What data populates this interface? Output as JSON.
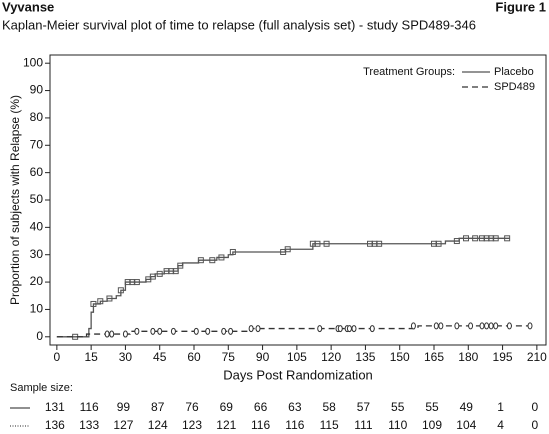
{
  "header": {
    "left": "Vyvanse",
    "right": "Figure 1"
  },
  "chart_data": {
    "type": "step",
    "title": "Kaplan-Meier survival plot of time to relapse (full analysis set) - study SPD489-346",
    "x_label": "Days Post Randomization",
    "y_label": "Proportion of subjects with Relapse (%)",
    "legend_title": "Treatment Groups:",
    "legend_position": "top-right",
    "sample_size_label": "Sample size:",
    "xlim": [
      -3,
      214
    ],
    "ylim": [
      -3,
      103
    ],
    "xticks": [
      0,
      15,
      30,
      45,
      60,
      75,
      90,
      105,
      120,
      135,
      150,
      165,
      180,
      195,
      210
    ],
    "yticks": [
      0,
      10,
      20,
      30,
      40,
      50,
      60,
      70,
      80,
      90,
      100
    ],
    "series": [
      {
        "name": "Placebo",
        "color": "#555555",
        "dash": "solid",
        "x": [
          0,
          14,
          15,
          16,
          19,
          22,
          26,
          28,
          30,
          39,
          41,
          43,
          47,
          53,
          55,
          62,
          70,
          75,
          77,
          100,
          112,
          170,
          176,
          198
        ],
        "values": [
          0,
          3,
          9,
          12,
          13,
          14,
          15,
          17,
          20,
          21,
          22,
          23,
          24,
          26,
          27,
          28,
          29,
          30,
          31,
          32,
          34,
          35,
          36,
          36
        ],
        "censored": {
          "x": [
            8,
            16,
            19,
            23,
            28,
            31,
            33,
            35,
            40,
            42,
            45,
            48,
            50,
            52,
            54,
            63,
            68,
            72,
            77,
            99,
            101,
            112,
            114,
            118,
            137,
            139,
            141,
            165,
            167,
            175,
            179,
            183,
            186,
            188,
            190,
            192,
            197
          ],
          "y": [
            0,
            12,
            13,
            14,
            17,
            20,
            20,
            20,
            21,
            22,
            23,
            24,
            24,
            24,
            26,
            28,
            28,
            29,
            31,
            31,
            32,
            34,
            34,
            34,
            34,
            34,
            34,
            34,
            34,
            35,
            36,
            36,
            36,
            36,
            36,
            36,
            36
          ]
        },
        "at_risk": [
          131,
          116,
          99,
          87,
          76,
          69,
          66,
          63,
          58,
          57,
          55,
          55,
          49,
          1,
          0
        ]
      },
      {
        "name": "SPD489",
        "color": "#333333",
        "dash": "dashed",
        "x": [
          0,
          13,
          32,
          85,
          158,
          208
        ],
        "values": [
          0,
          1,
          2,
          3,
          4,
          4
        ],
        "censored": {
          "x": [
            22,
            24,
            30,
            35,
            42,
            45,
            51,
            61,
            66,
            73,
            76,
            85,
            88,
            115,
            123,
            124,
            127,
            128,
            130,
            138,
            156,
            166,
            168,
            175,
            181,
            186,
            188,
            190,
            192,
            198,
            207
          ],
          "y": [
            1,
            1,
            1,
            2,
            2,
            2,
            2,
            2,
            2,
            2,
            2,
            3,
            3,
            3,
            3,
            3,
            3,
            3,
            3,
            3,
            4,
            4,
            4,
            4,
            4,
            4,
            4,
            4,
            4,
            4,
            4
          ]
        },
        "at_risk": [
          136,
          133,
          127,
          124,
          123,
          121,
          116,
          116,
          115,
          111,
          110,
          109,
          104,
          4,
          0
        ]
      }
    ]
  }
}
